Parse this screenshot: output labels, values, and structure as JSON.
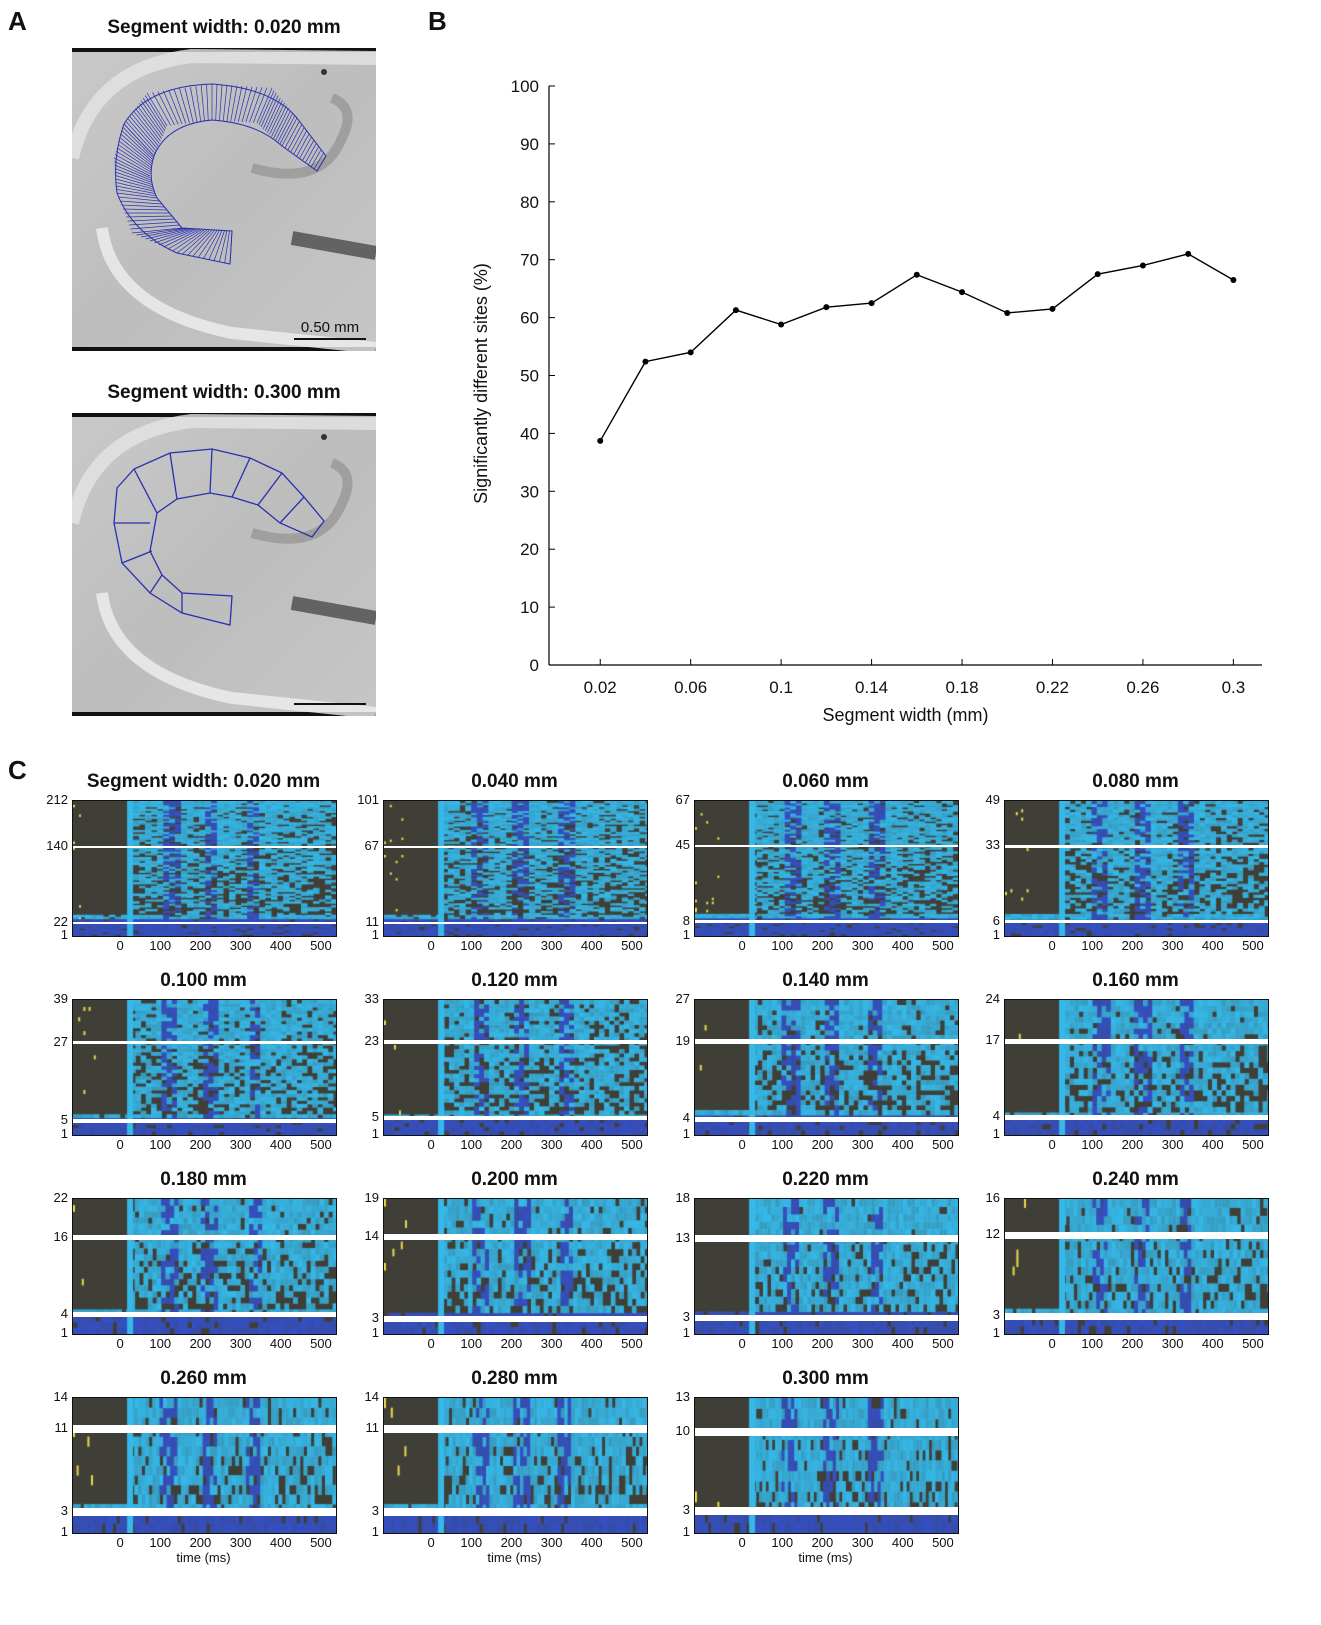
{
  "panels": {
    "a": {
      "letter": "A",
      "top_title": "Segment width: 0.020 mm",
      "bottom_title": "Segment width: 0.300 mm",
      "scale_label": "0.50 mm"
    },
    "b": {
      "letter": "B"
    },
    "c": {
      "letter": "C"
    }
  },
  "colors": {
    "line": "#000000",
    "outline_blue": "#2a2fb0",
    "heat_bg": "#3f3f37",
    "heat_cyan": "#36b8e8",
    "heat_blue": "#3550c4",
    "heat_yellow": "#e8d84a"
  },
  "chart_data": [
    {
      "type": "line",
      "panel": "B",
      "xlabel": "Segment width (mm)",
      "ylabel": "Significantly different sites (%)",
      "xlim": [
        0.0,
        0.31
      ],
      "ylim": [
        0,
        100
      ],
      "xticks": [
        "0.02",
        "0.06",
        "0.1",
        "0.14",
        "0.18",
        "0.22",
        "0.26",
        "0.3"
      ],
      "yticks": [
        "0",
        "10",
        "20",
        "30",
        "40",
        "50",
        "60",
        "70",
        "80",
        "90",
        "100"
      ],
      "x": [
        0.02,
        0.04,
        0.06,
        0.08,
        0.1,
        0.12,
        0.14,
        0.16,
        0.18,
        0.2,
        0.22,
        0.24,
        0.26,
        0.28,
        0.3
      ],
      "y": [
        38.7,
        52.4,
        54.0,
        61.3,
        58.8,
        61.8,
        62.5,
        67.4,
        64.4,
        60.8,
        61.5,
        67.5,
        69.0,
        71.0,
        66.5
      ]
    },
    {
      "type": "heatmap",
      "panel": "C",
      "xlabel": "time (ms)",
      "xticks": [
        "0",
        "100",
        "200",
        "300",
        "400",
        "500"
      ],
      "panels": [
        {
          "title": "Segment width: 0.020 mm",
          "yticks": [
            "212",
            "140",
            "22",
            "1"
          ],
          "max": 212,
          "lines": [
            140,
            22
          ]
        },
        {
          "title": "0.040 mm",
          "yticks": [
            "101",
            "67",
            "11",
            "1"
          ],
          "max": 101,
          "lines": [
            67,
            11
          ]
        },
        {
          "title": "0.060 mm",
          "yticks": [
            "67",
            "45",
            "8",
            "1"
          ],
          "max": 67,
          "lines": [
            45,
            8
          ]
        },
        {
          "title": "0.080 mm",
          "yticks": [
            "49",
            "33",
            "6",
            "1"
          ],
          "max": 49,
          "lines": [
            33,
            6
          ]
        },
        {
          "title": "0.100 mm",
          "yticks": [
            "39",
            "27",
            "5",
            "1"
          ],
          "max": 39,
          "lines": [
            27,
            5
          ]
        },
        {
          "title": "0.120 mm",
          "yticks": [
            "33",
            "23",
            "5",
            "1"
          ],
          "max": 33,
          "lines": [
            23,
            5
          ]
        },
        {
          "title": "0.140 mm",
          "yticks": [
            "27",
            "19",
            "4",
            "1"
          ],
          "max": 27,
          "lines": [
            19,
            4
          ]
        },
        {
          "title": "0.160 mm",
          "yticks": [
            "24",
            "17",
            "4",
            "1"
          ],
          "max": 24,
          "lines": [
            17,
            4
          ]
        },
        {
          "title": "0.180 mm",
          "yticks": [
            "22",
            "16",
            "4",
            "1"
          ],
          "max": 22,
          "lines": [
            16,
            4
          ]
        },
        {
          "title": "0.200 mm",
          "yticks": [
            "19",
            "14",
            "3",
            "1"
          ],
          "max": 19,
          "lines": [
            14,
            3
          ]
        },
        {
          "title": "0.220 mm",
          "yticks": [
            "18",
            "13",
            "3",
            "1"
          ],
          "max": 18,
          "lines": [
            13,
            3
          ]
        },
        {
          "title": "0.240 mm",
          "yticks": [
            "16",
            "12",
            "3",
            "1"
          ],
          "max": 16,
          "lines": [
            12,
            3
          ]
        },
        {
          "title": "0.260 mm",
          "yticks": [
            "14",
            "11",
            "3",
            "1"
          ],
          "max": 14,
          "lines": [
            11,
            3
          ]
        },
        {
          "title": "0.280 mm",
          "yticks": [
            "14",
            "11",
            "3",
            "1"
          ],
          "max": 14,
          "lines": [
            11,
            3
          ]
        },
        {
          "title": "0.300 mm",
          "yticks": [
            "13",
            "10",
            "3",
            "1"
          ],
          "max": 13,
          "lines": [
            10,
            3
          ]
        }
      ]
    }
  ]
}
